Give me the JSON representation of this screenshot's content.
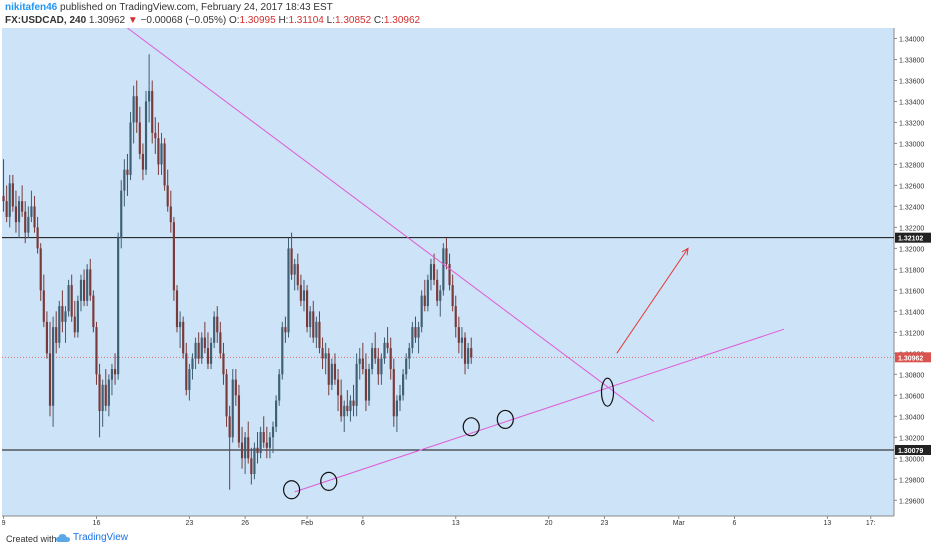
{
  "header": {
    "author": "nikitafen46",
    "published_text": "published on TradingView.com, February 24, 2017 18:43 EST",
    "symbol": "FX:USDCAD, 240",
    "last": "1.30962",
    "change_arrow": "▼",
    "change": "−0.00068 (−0.05%)",
    "o_label": "O:",
    "o_value": "1.30995",
    "h_label": "H:",
    "h_value": "1.31104",
    "l_label": "L:",
    "l_value": "1.30852",
    "c_label": "C:",
    "c_value": "1.30962"
  },
  "footer": {
    "created_with": "Created with",
    "brand": "TradingView",
    "logo_icon": "tradingview-cloud-icon"
  },
  "colors": {
    "background": "#cde3f8",
    "up": "#3f5f73",
    "down": "#7a3a3a",
    "trendline": "#e05ad6",
    "level_line": "#111111",
    "arrow": "#e53935",
    "price_line": "#e07070",
    "axis_text": "#333333"
  },
  "chart_data": {
    "type": "candlestick",
    "ylim": [
      1.2945,
      1.341
    ],
    "y_ticks": [
      "1.34000",
      "1.33800",
      "1.33600",
      "1.33400",
      "1.33200",
      "1.33000",
      "1.32800",
      "1.32600",
      "1.32400",
      "1.32200",
      "1.32000",
      "1.31800",
      "1.31600",
      "1.31400",
      "1.31200",
      "1.31000",
      "1.30800",
      "1.30600",
      "1.30400",
      "1.30200",
      "1.30000",
      "1.29800",
      "1.29600"
    ],
    "x_ticks": [
      {
        "label": "9",
        "bar": 0
      },
      {
        "label": "16",
        "bar": 30
      },
      {
        "label": "23",
        "bar": 60
      },
      {
        "label": "26",
        "bar": 78
      },
      {
        "label": "Feb",
        "bar": 98
      },
      {
        "label": "6",
        "bar": 116
      },
      {
        "label": "13",
        "bar": 146
      },
      {
        "label": "20",
        "bar": 176
      },
      {
        "label": "23",
        "bar": 194
      },
      {
        "label": "Mar",
        "bar": 218
      },
      {
        "label": "6",
        "bar": 236
      },
      {
        "label": "13",
        "bar": 266
      },
      {
        "label": "17:",
        "bar": 280
      }
    ],
    "total_bars": 288,
    "candles": [
      [
        1.325,
        1.3285,
        1.3235,
        1.3245
      ],
      [
        1.3245,
        1.326,
        1.3225,
        1.323
      ],
      [
        1.323,
        1.327,
        1.322,
        1.3262
      ],
      [
        1.3262,
        1.327,
        1.3235,
        1.324
      ],
      [
        1.324,
        1.3255,
        1.3215,
        1.3225
      ],
      [
        1.3225,
        1.325,
        1.321,
        1.3245
      ],
      [
        1.3245,
        1.326,
        1.323,
        1.3235
      ],
      [
        1.3235,
        1.3245,
        1.3205,
        1.3215
      ],
      [
        1.3215,
        1.324,
        1.321,
        1.323
      ],
      [
        1.323,
        1.3255,
        1.3225,
        1.324
      ],
      [
        1.324,
        1.325,
        1.3215,
        1.322
      ],
      [
        1.322,
        1.323,
        1.3195,
        1.32
      ],
      [
        1.32,
        1.3205,
        1.315,
        1.316
      ],
      [
        1.316,
        1.3175,
        1.3125,
        1.313
      ],
      [
        1.313,
        1.314,
        1.3095,
        1.31
      ],
      [
        1.31,
        1.313,
        1.304,
        1.305
      ],
      [
        1.305,
        1.3135,
        1.303,
        1.3125
      ],
      [
        1.3125,
        1.314,
        1.31,
        1.311
      ],
      [
        1.311,
        1.315,
        1.3105,
        1.3145
      ],
      [
        1.3145,
        1.316,
        1.312,
        1.313
      ],
      [
        1.313,
        1.3145,
        1.311,
        1.314
      ],
      [
        1.314,
        1.317,
        1.3135,
        1.3165
      ],
      [
        1.3165,
        1.3175,
        1.313,
        1.3135
      ],
      [
        1.3135,
        1.315,
        1.3115,
        1.312
      ],
      [
        1.312,
        1.3155,
        1.3115,
        1.315
      ],
      [
        1.315,
        1.3175,
        1.314,
        1.317
      ],
      [
        1.317,
        1.318,
        1.3145,
        1.315
      ],
      [
        1.315,
        1.3185,
        1.3145,
        1.318
      ],
      [
        1.318,
        1.319,
        1.315,
        1.3155
      ],
      [
        1.3155,
        1.316,
        1.312,
        1.3125
      ],
      [
        1.3125,
        1.313,
        1.307,
        1.308
      ],
      [
        1.308,
        1.309,
        1.302,
        1.3045
      ],
      [
        1.3045,
        1.3075,
        1.303,
        1.307
      ],
      [
        1.307,
        1.3085,
        1.3045,
        1.305
      ],
      [
        1.305,
        1.308,
        1.304,
        1.3075
      ],
      [
        1.3075,
        1.309,
        1.306,
        1.3085
      ],
      [
        1.3085,
        1.31,
        1.307,
        1.308
      ],
      [
        1.308,
        1.3215,
        1.3075,
        1.321
      ],
      [
        1.321,
        1.3265,
        1.32,
        1.3255
      ],
      [
        1.3255,
        1.3285,
        1.324,
        1.3275
      ],
      [
        1.3275,
        1.329,
        1.325,
        1.327
      ],
      [
        1.327,
        1.333,
        1.3265,
        1.332
      ],
      [
        1.332,
        1.3355,
        1.33,
        1.3345
      ],
      [
        1.3345,
        1.336,
        1.331,
        1.332
      ],
      [
        1.332,
        1.3335,
        1.3285,
        1.329
      ],
      [
        1.329,
        1.33,
        1.3265,
        1.3275
      ],
      [
        1.3275,
        1.335,
        1.327,
        1.334
      ],
      [
        1.334,
        1.3385,
        1.332,
        1.335
      ],
      [
        1.335,
        1.336,
        1.33,
        1.331
      ],
      [
        1.331,
        1.3325,
        1.329,
        1.3305
      ],
      [
        1.3305,
        1.332,
        1.327,
        1.328
      ],
      [
        1.328,
        1.331,
        1.327,
        1.33
      ],
      [
        1.33,
        1.3305,
        1.3255,
        1.326
      ],
      [
        1.326,
        1.3275,
        1.3235,
        1.324
      ],
      [
        1.324,
        1.3255,
        1.3215,
        1.3225
      ],
      [
        1.3225,
        1.323,
        1.315,
        1.316
      ],
      [
        1.316,
        1.3165,
        1.312,
        1.3125
      ],
      [
        1.3125,
        1.314,
        1.3105,
        1.313
      ],
      [
        1.313,
        1.3135,
        1.3095,
        1.31
      ],
      [
        1.31,
        1.311,
        1.306,
        1.3065
      ],
      [
        1.3065,
        1.309,
        1.3055,
        1.3085
      ],
      [
        1.3085,
        1.31,
        1.3075,
        1.3095
      ],
      [
        1.3095,
        1.3115,
        1.3085,
        1.311
      ],
      [
        1.311,
        1.312,
        1.309,
        1.3095
      ],
      [
        1.3095,
        1.312,
        1.309,
        1.3115
      ],
      [
        1.3115,
        1.313,
        1.31,
        1.3105
      ],
      [
        1.3105,
        1.312,
        1.3085,
        1.309
      ],
      [
        1.309,
        1.3115,
        1.3085,
        1.311
      ],
      [
        1.311,
        1.314,
        1.3105,
        1.3135
      ],
      [
        1.3135,
        1.3145,
        1.311,
        1.312
      ],
      [
        1.312,
        1.313,
        1.3095,
        1.31
      ],
      [
        1.31,
        1.311,
        1.307,
        1.308
      ],
      [
        1.308,
        1.3085,
        1.303,
        1.304
      ],
      [
        1.304,
        1.305,
        1.297,
        1.302
      ],
      [
        1.302,
        1.3085,
        1.3015,
        1.3075
      ],
      [
        1.3075,
        1.3085,
        1.305,
        1.306
      ],
      [
        1.306,
        1.307,
        1.301,
        1.3015
      ],
      [
        1.3015,
        1.303,
        1.299,
        1.3
      ],
      [
        1.3,
        1.3025,
        1.2985,
        1.302
      ],
      [
        1.302,
        1.3035,
        1.2995,
        1.3
      ],
      [
        1.3,
        1.301,
        1.2975,
        1.2985
      ],
      [
        1.2985,
        1.3015,
        1.298,
        1.301
      ],
      [
        1.301,
        1.3025,
        1.2995,
        1.3005
      ],
      [
        1.3005,
        1.303,
        1.3,
        1.3025
      ],
      [
        1.3025,
        1.304,
        1.301,
        1.3015
      ],
      [
        1.3015,
        1.303,
        1.3,
        1.301
      ],
      [
        1.301,
        1.3025,
        1.3,
        1.302
      ],
      [
        1.302,
        1.3035,
        1.3005,
        1.303
      ],
      [
        1.303,
        1.306,
        1.3025,
        1.3055
      ],
      [
        1.3055,
        1.3085,
        1.305,
        1.308
      ],
      [
        1.308,
        1.313,
        1.3075,
        1.3125
      ],
      [
        1.3125,
        1.3135,
        1.311,
        1.312
      ],
      [
        1.312,
        1.321,
        1.3115,
        1.32
      ],
      [
        1.32,
        1.3215,
        1.317,
        1.3175
      ],
      [
        1.3175,
        1.319,
        1.316,
        1.3185
      ],
      [
        1.3185,
        1.3195,
        1.316,
        1.3165
      ],
      [
        1.3165,
        1.3175,
        1.3145,
        1.315
      ],
      [
        1.315,
        1.317,
        1.314,
        1.316
      ],
      [
        1.316,
        1.3165,
        1.312,
        1.3125
      ],
      [
        1.3125,
        1.3145,
        1.3115,
        1.314
      ],
      [
        1.314,
        1.315,
        1.311,
        1.3115
      ],
      [
        1.3115,
        1.3135,
        1.3105,
        1.313
      ],
      [
        1.313,
        1.314,
        1.31,
        1.3105
      ],
      [
        1.3105,
        1.3115,
        1.3085,
        1.3095
      ],
      [
        1.3095,
        1.311,
        1.308,
        1.31
      ],
      [
        1.31,
        1.3105,
        1.306,
        1.307
      ],
      [
        1.307,
        1.3095,
        1.3065,
        1.309
      ],
      [
        1.309,
        1.31,
        1.307,
        1.3075
      ],
      [
        1.3075,
        1.3085,
        1.3045,
        1.306
      ],
      [
        1.306,
        1.3075,
        1.3035,
        1.304
      ],
      [
        1.304,
        1.3055,
        1.3025,
        1.305
      ],
      [
        1.305,
        1.3065,
        1.304,
        1.3045
      ],
      [
        1.3045,
        1.306,
        1.3035,
        1.3055
      ],
      [
        1.3055,
        1.307,
        1.304,
        1.305
      ],
      [
        1.305,
        1.31,
        1.304,
        1.309
      ],
      [
        1.309,
        1.3105,
        1.3075,
        1.3095
      ],
      [
        1.3095,
        1.311,
        1.308,
        1.3085
      ],
      [
        1.3085,
        1.31,
        1.3045,
        1.3055
      ],
      [
        1.3055,
        1.309,
        1.305,
        1.3085
      ],
      [
        1.3085,
        1.311,
        1.308,
        1.3105
      ],
      [
        1.3105,
        1.312,
        1.309,
        1.3095
      ],
      [
        1.3095,
        1.3105,
        1.307,
        1.308
      ],
      [
        1.308,
        1.31,
        1.307,
        1.3095
      ],
      [
        1.3095,
        1.3115,
        1.309,
        1.311
      ],
      [
        1.311,
        1.3125,
        1.31,
        1.3105
      ],
      [
        1.3105,
        1.3115,
        1.3075,
        1.3085
      ],
      [
        1.3085,
        1.3095,
        1.303,
        1.304
      ],
      [
        1.304,
        1.306,
        1.3025,
        1.3055
      ],
      [
        1.3055,
        1.307,
        1.3045,
        1.306
      ],
      [
        1.306,
        1.3085,
        1.3055,
        1.308
      ],
      [
        1.308,
        1.31,
        1.3075,
        1.3095
      ],
      [
        1.3095,
        1.311,
        1.3085,
        1.3105
      ],
      [
        1.3105,
        1.313,
        1.31,
        1.3125
      ],
      [
        1.3125,
        1.3135,
        1.311,
        1.3115
      ],
      [
        1.3115,
        1.313,
        1.31,
        1.3125
      ],
      [
        1.3125,
        1.316,
        1.312,
        1.3155
      ],
      [
        1.3155,
        1.317,
        1.314,
        1.3145
      ],
      [
        1.3145,
        1.3175,
        1.314,
        1.317
      ],
      [
        1.317,
        1.319,
        1.316,
        1.3185
      ],
      [
        1.3185,
        1.3195,
        1.3165,
        1.317
      ],
      [
        1.317,
        1.318,
        1.3145,
        1.315
      ],
      [
        1.315,
        1.3165,
        1.3135,
        1.316
      ],
      [
        1.316,
        1.3205,
        1.3155,
        1.32
      ],
      [
        1.32,
        1.321,
        1.318,
        1.3185
      ],
      [
        1.3185,
        1.3195,
        1.316,
        1.3165
      ],
      [
        1.3165,
        1.3175,
        1.314,
        1.3145
      ],
      [
        1.3145,
        1.3155,
        1.3115,
        1.3125
      ],
      [
        1.3125,
        1.3135,
        1.31,
        1.311
      ],
      [
        1.311,
        1.3125,
        1.3095,
        1.3115
      ],
      [
        1.3115,
        1.312,
        1.308,
        1.309
      ],
      [
        1.309,
        1.311,
        1.3085,
        1.3105
      ],
      [
        1.3105,
        1.3115,
        1.309,
        1.3096
      ]
    ],
    "levels": [
      {
        "label": "1.32102",
        "value": 1.32102
      },
      {
        "label": "1.30079",
        "value": 1.30079
      }
    ],
    "current_price": {
      "label": "1.30962",
      "value": 1.30962
    },
    "trendlines": [
      {
        "name": "descending",
        "from": {
          "bar": 40,
          "price": 1.341
        },
        "to": {
          "bar": 210,
          "price": 1.3035
        }
      },
      {
        "name": "ascending",
        "from": {
          "bar": 94,
          "price": 1.2968
        },
        "to": {
          "bar": 252,
          "price": 1.3123
        }
      }
    ],
    "arrow": {
      "from": {
        "bar": 198,
        "price": 1.31
      },
      "to": {
        "bar": 221,
        "price": 1.32
      }
    },
    "circles": [
      {
        "bar": 93,
        "price": 1.297
      },
      {
        "bar": 105,
        "price": 1.2978
      },
      {
        "bar": 151,
        "price": 1.303
      },
      {
        "bar": 162,
        "price": 1.3037
      },
      {
        "bar": 195,
        "price": 1.3063
      }
    ]
  }
}
